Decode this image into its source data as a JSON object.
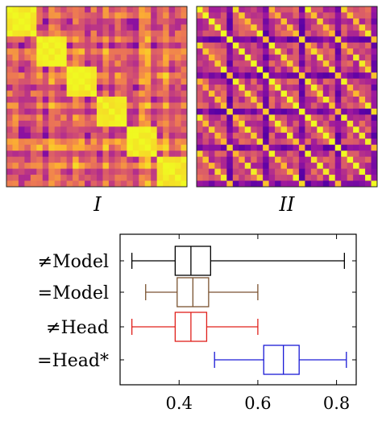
{
  "heatmaps": [
    {
      "label": "I",
      "pattern": "block-diagonal",
      "blocks": 6
    },
    {
      "label": "II",
      "pattern": "periodic-diagonal",
      "period": 6
    }
  ],
  "colormap": [
    "#0d0887",
    "#5c01a6",
    "#9c179e",
    "#cc4778",
    "#ed7953",
    "#fdb42f",
    "#f0f921"
  ],
  "chart_data": {
    "type": "boxplot",
    "orientation": "horizontal",
    "xlim": [
      0.25,
      0.85
    ],
    "xticks": [
      0.4,
      0.6,
      0.8
    ],
    "grid": false,
    "series": [
      {
        "name": "≠Model",
        "color": "#000000",
        "whisker_low": 0.28,
        "q1": 0.39,
        "median": 0.43,
        "q3": 0.48,
        "whisker_high": 0.82
      },
      {
        "name": "=Model",
        "color": "#7a5230",
        "whisker_low": 0.315,
        "q1": 0.395,
        "median": 0.435,
        "q3": 0.475,
        "whisker_high": 0.6
      },
      {
        "name": "≠Head",
        "color": "#e0201b",
        "whisker_low": 0.28,
        "q1": 0.39,
        "median": 0.43,
        "q3": 0.47,
        "whisker_high": 0.6
      },
      {
        "name": "=Head*",
        "color": "#1a1ad6",
        "whisker_low": 0.49,
        "q1": 0.615,
        "median": 0.665,
        "q3": 0.705,
        "whisker_high": 0.825
      }
    ]
  }
}
